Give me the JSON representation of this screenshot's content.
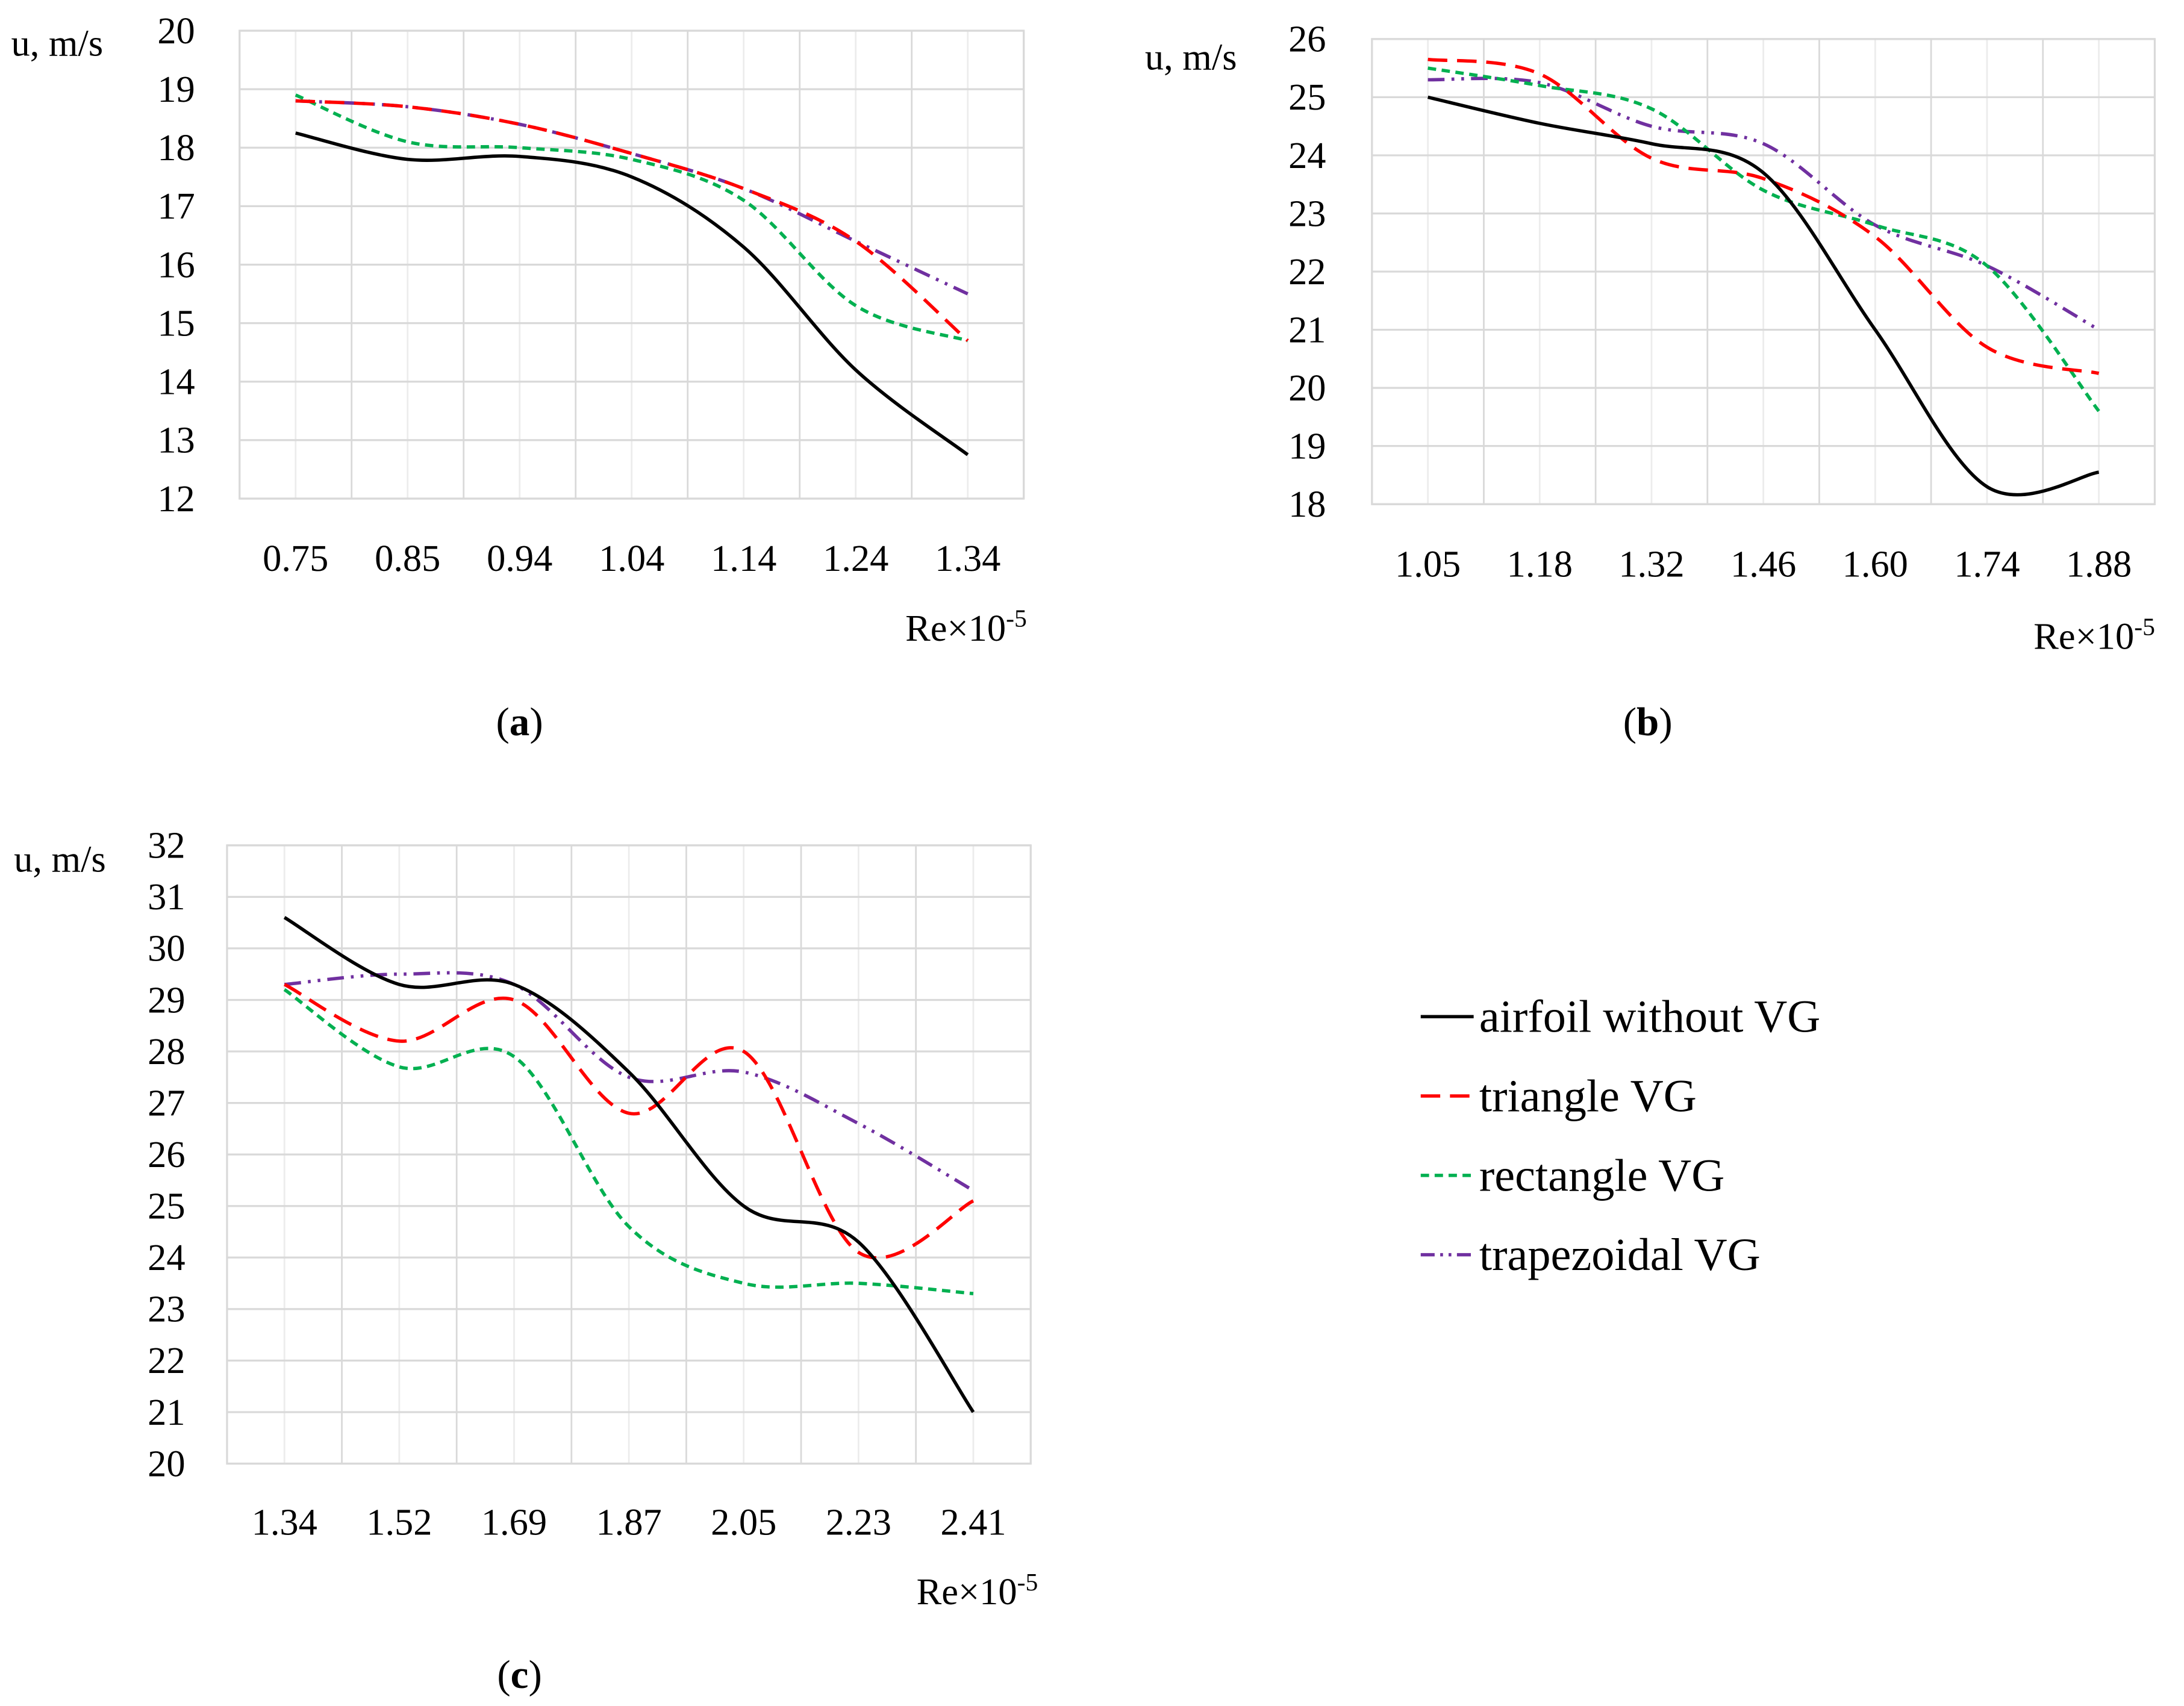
{
  "legend": [
    {
      "name": "airfoil without VG",
      "color": "#000000",
      "dash": "solid"
    },
    {
      "name": "triangle VG",
      "color": "#ff0000",
      "dash": "dash"
    },
    {
      "name": "rectangle VG",
      "color": "#00b050",
      "dash": "shortdash"
    },
    {
      "name": "trapezoidal VG",
      "color": "#7030a0",
      "dash": "dashdotdot"
    }
  ],
  "chart_data": [
    {
      "type": "line",
      "caption_open": "(",
      "caption": "a",
      "caption_close": ")",
      "ylabel": "u, m/s",
      "xlabel": "Re×10",
      "xlabel_sup": "-5",
      "categories": [
        "0.75",
        "0.85",
        "0.94",
        "1.04",
        "1.14",
        "1.24",
        "1.34"
      ],
      "ylim": [
        12,
        20
      ],
      "yticks": [
        12,
        13,
        14,
        15,
        16,
        17,
        18,
        19,
        20
      ],
      "grid": true,
      "series": [
        {
          "name": "airfoil without VG",
          "values": [
            18.25,
            17.8,
            17.85,
            17.5,
            16.3,
            14.2,
            12.75
          ]
        },
        {
          "name": "triangle VG",
          "values": [
            18.8,
            18.7,
            18.4,
            17.9,
            17.3,
            16.4,
            14.7
          ]
        },
        {
          "name": "rectangle VG",
          "values": [
            18.9,
            18.1,
            18.0,
            17.8,
            17.1,
            15.3,
            14.7
          ]
        },
        {
          "name": "trapezoidal VG",
          "values": [
            18.8,
            18.7,
            18.4,
            17.9,
            17.3,
            16.4,
            15.5
          ]
        }
      ]
    },
    {
      "type": "line",
      "caption_open": "(",
      "caption": "b",
      "caption_close": ")",
      "ylabel": "u, m/s",
      "xlabel": "Re×10",
      "xlabel_sup": "-5",
      "categories": [
        "1.05",
        "1.18",
        "1.32",
        "1.46",
        "1.60",
        "1.74",
        "1.88"
      ],
      "ylim": [
        18,
        26
      ],
      "yticks": [
        18,
        19,
        20,
        21,
        22,
        23,
        24,
        25,
        26
      ],
      "grid": true,
      "series": [
        {
          "name": "airfoil without VG",
          "values": [
            25.0,
            24.55,
            24.2,
            23.7,
            21.0,
            18.3,
            18.55
          ]
        },
        {
          "name": "triangle VG",
          "values": [
            25.65,
            25.4,
            23.95,
            23.6,
            22.6,
            20.7,
            20.25
          ]
        },
        {
          "name": "rectangle VG",
          "values": [
            25.5,
            25.2,
            24.8,
            23.4,
            22.8,
            22.1,
            19.6
          ]
        },
        {
          "name": "trapezoidal VG",
          "values": [
            25.3,
            25.25,
            24.5,
            24.2,
            22.8,
            22.1,
            21.0
          ]
        }
      ]
    },
    {
      "type": "line",
      "caption_open": "(",
      "caption": "c",
      "caption_close": ")",
      "ylabel": "u, m/s",
      "xlabel": "Re×10",
      "xlabel_sup": "-5",
      "categories": [
        "1.34",
        "1.52",
        "1.69",
        "1.87",
        "2.05",
        "2.23",
        "2.41"
      ],
      "ylim": [
        20,
        32
      ],
      "yticks": [
        20,
        21,
        22,
        23,
        24,
        25,
        26,
        27,
        28,
        29,
        30,
        31,
        32
      ],
      "grid": true,
      "series": [
        {
          "name": "airfoil without VG",
          "values": [
            30.6,
            29.3,
            29.3,
            27.6,
            25.0,
            24.3,
            21.0
          ]
        },
        {
          "name": "triangle VG",
          "values": [
            29.3,
            28.2,
            29.0,
            26.8,
            28.0,
            24.1,
            25.1
          ]
        },
        {
          "name": "rectangle VG",
          "values": [
            29.2,
            27.7,
            27.9,
            24.6,
            23.5,
            23.5,
            23.3
          ]
        },
        {
          "name": "trapezoidal VG",
          "values": [
            29.3,
            29.5,
            29.3,
            27.5,
            27.6,
            26.6,
            25.3
          ]
        }
      ]
    }
  ]
}
